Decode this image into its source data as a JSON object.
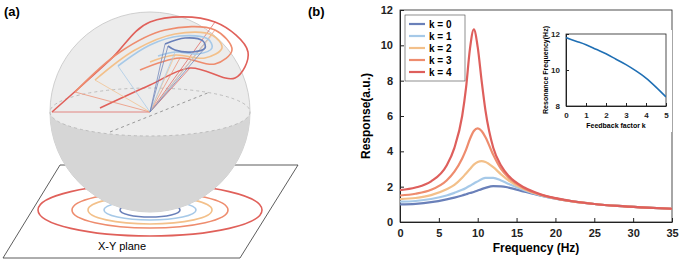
{
  "diagram": {
    "label": "(a)",
    "plane_label": "X-Y plane"
  },
  "chart_data": [
    {
      "type": "line",
      "title": "(b)",
      "x_label": "Frequency (Hz)",
      "y_label": "Response(a.u.)",
      "x": [
        0,
        2,
        4,
        6,
        7,
        8,
        8.5,
        9,
        9.5,
        10,
        10.5,
        11,
        12,
        13,
        14,
        16,
        18,
        20,
        22,
        25,
        28,
        31,
        35
      ],
      "series": [
        {
          "name": "k = 0",
          "color": "#6a80b9",
          "values": [
            1.0,
            1.03,
            1.12,
            1.28,
            1.38,
            1.5,
            1.57,
            1.64,
            1.7,
            1.78,
            1.86,
            1.93,
            2.03,
            2.02,
            1.95,
            1.72,
            1.5,
            1.32,
            1.18,
            1.02,
            0.91,
            0.83,
            0.75
          ]
        },
        {
          "name": "k = 1",
          "color": "#a6c9e8",
          "values": [
            1.15,
            1.19,
            1.3,
            1.5,
            1.65,
            1.82,
            1.93,
            2.05,
            2.18,
            2.3,
            2.42,
            2.5,
            2.5,
            2.35,
            2.15,
            1.8,
            1.52,
            1.33,
            1.18,
            1.02,
            0.91,
            0.83,
            0.75
          ]
        },
        {
          "name": "k = 2",
          "color": "#f3c08a",
          "values": [
            1.3,
            1.36,
            1.52,
            1.85,
            2.1,
            2.5,
            2.75,
            3.0,
            3.25,
            3.4,
            3.45,
            3.4,
            3.1,
            2.7,
            2.35,
            1.85,
            1.54,
            1.33,
            1.18,
            1.02,
            0.91,
            0.83,
            0.75
          ]
        },
        {
          "name": "k = 3",
          "color": "#ee8c6e",
          "values": [
            1.5,
            1.6,
            1.82,
            2.35,
            2.85,
            3.6,
            4.1,
            4.7,
            5.15,
            5.3,
            5.15,
            4.8,
            3.8,
            3.0,
            2.5,
            1.9,
            1.56,
            1.34,
            1.18,
            1.02,
            0.91,
            0.83,
            0.75
          ]
        },
        {
          "name": "k = 4",
          "color": "#de5f5c",
          "values": [
            1.8,
            1.95,
            2.3,
            3.2,
            4.2,
            6.0,
            7.6,
            9.8,
            10.9,
            9.9,
            8.0,
            6.3,
            4.2,
            3.2,
            2.6,
            1.95,
            1.58,
            1.35,
            1.19,
            1.02,
            0.91,
            0.83,
            0.75
          ]
        }
      ],
      "xlim": [
        0,
        35
      ],
      "xticks": [
        0,
        5,
        10,
        15,
        20,
        25,
        30,
        35
      ],
      "ylim": [
        0,
        12
      ],
      "yticks": [
        0,
        2,
        4,
        6,
        8,
        10,
        12
      ],
      "legend": "upper left"
    },
    {
      "type": "line",
      "x_label": "Feedback factor k",
      "y_label": "Resonance Frequency(Hz)",
      "x": [
        0,
        0.5,
        1,
        1.5,
        2,
        2.5,
        3,
        3.5,
        4,
        4.5,
        5
      ],
      "series": [
        {
          "color": "#1f6fb4",
          "values": [
            11.8,
            11.6,
            11.4,
            11.15,
            10.9,
            10.6,
            10.3,
            9.95,
            9.55,
            9.05,
            8.5
          ]
        }
      ],
      "xlim": [
        0,
        5
      ],
      "xticks": [
        0,
        1,
        2,
        3,
        4,
        5
      ],
      "ylim": [
        8,
        12
      ],
      "yticks": [
        8,
        10,
        12
      ]
    }
  ]
}
